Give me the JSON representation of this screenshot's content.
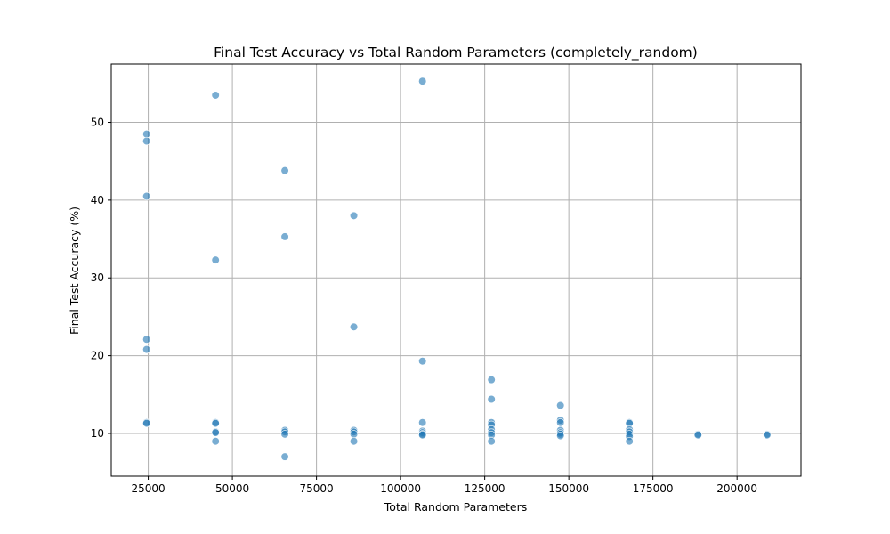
{
  "colors": {
    "point_fill": "#1f77b4",
    "point_stroke": "#ffffff",
    "grid": "#b0b0b0",
    "axis": "#000000",
    "background": "#ffffff"
  },
  "chart_data": {
    "type": "scatter",
    "title": "Final Test Accuracy vs Total Random Parameters (completely_random)",
    "xlabel": "Total Random Parameters",
    "ylabel": "Final Test Accuracy (%)",
    "xlim": [
      14000,
      219000
    ],
    "ylim": [
      4.5,
      57.5
    ],
    "xticks": [
      25000,
      50000,
      75000,
      100000,
      125000,
      150000,
      175000,
      200000
    ],
    "xtick_labels": [
      "25000",
      "50000",
      "75000",
      "100000",
      "125000",
      "150000",
      "175000",
      "200000"
    ],
    "yticks": [
      10,
      20,
      30,
      40,
      50
    ],
    "ytick_labels": [
      "10",
      "20",
      "30",
      "40",
      "50"
    ],
    "grid": true,
    "point_alpha": 0.6,
    "series": [
      {
        "points": [
          [
            24500,
            48.5
          ],
          [
            24500,
            47.6
          ],
          [
            24500,
            40.5
          ],
          [
            24500,
            22.1
          ],
          [
            24500,
            20.8
          ],
          [
            24500,
            11.4
          ],
          [
            24500,
            11.3
          ],
          [
            45000,
            53.5
          ],
          [
            45000,
            32.3
          ],
          [
            45000,
            11.4
          ],
          [
            45000,
            11.3
          ],
          [
            45000,
            10.2
          ],
          [
            45000,
            10.1
          ],
          [
            45000,
            9.0
          ],
          [
            65600,
            43.8
          ],
          [
            65600,
            35.3
          ],
          [
            65600,
            10.4
          ],
          [
            65600,
            10.2
          ],
          [
            65600,
            9.9
          ],
          [
            65600,
            7.0
          ],
          [
            86100,
            38.0
          ],
          [
            86100,
            23.7
          ],
          [
            86100,
            10.4
          ],
          [
            86100,
            10.2
          ],
          [
            86100,
            9.9
          ],
          [
            86100,
            9.0
          ],
          [
            106500,
            55.3
          ],
          [
            106500,
            19.3
          ],
          [
            106500,
            11.4
          ],
          [
            106500,
            10.3
          ],
          [
            106500,
            10.1
          ],
          [
            106500,
            9.9
          ],
          [
            106500,
            9.8
          ],
          [
            127000,
            16.9
          ],
          [
            127000,
            14.4
          ],
          [
            127000,
            11.4
          ],
          [
            127000,
            11.1
          ],
          [
            127000,
            10.5
          ],
          [
            127000,
            10.1
          ],
          [
            127000,
            9.8
          ],
          [
            127000,
            9.0
          ],
          [
            147500,
            13.6
          ],
          [
            147500,
            11.7
          ],
          [
            147500,
            11.4
          ],
          [
            147500,
            10.4
          ],
          [
            147500,
            10.1
          ],
          [
            147500,
            9.9
          ],
          [
            147500,
            9.7
          ],
          [
            168000,
            11.4
          ],
          [
            168000,
            11.3
          ],
          [
            168000,
            10.5
          ],
          [
            168000,
            10.2
          ],
          [
            168000,
            9.9
          ],
          [
            168000,
            9.6
          ],
          [
            168000,
            9.0
          ],
          [
            188400,
            9.9
          ],
          [
            188400,
            9.8
          ],
          [
            208900,
            9.9
          ],
          [
            208900,
            9.8
          ]
        ]
      }
    ]
  }
}
